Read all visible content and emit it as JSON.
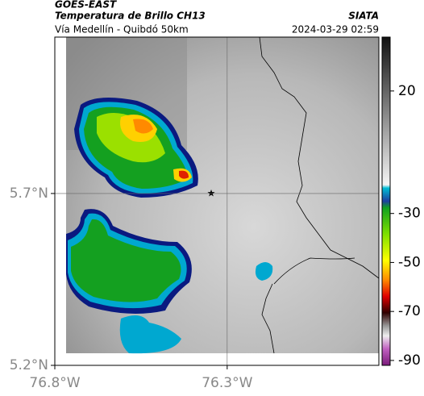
{
  "header": {
    "title": "GOES-EAST",
    "subtitle": "Temperatura de Brillo CH13",
    "route": "Vía Medellín - Quibdó 50km",
    "source": "SIATA",
    "timestamp": "2024-03-29 02:59"
  },
  "map": {
    "xlim": [
      -76.8,
      -75.86
    ],
    "ylim": [
      5.2,
      6.155
    ],
    "xticks": [
      {
        "value": -76.8,
        "label": "76.8°W"
      },
      {
        "value": -76.3,
        "label": "76.3°W"
      }
    ],
    "yticks": [
      {
        "value": 5.7,
        "label": "5.7°N"
      },
      {
        "value": 5.2,
        "label": "5.2°N"
      }
    ],
    "grid": true
  },
  "colorbar": {
    "lim": [
      -92,
      42
    ],
    "ticks": [
      20,
      -30,
      -50,
      -70,
      -90
    ]
  }
}
